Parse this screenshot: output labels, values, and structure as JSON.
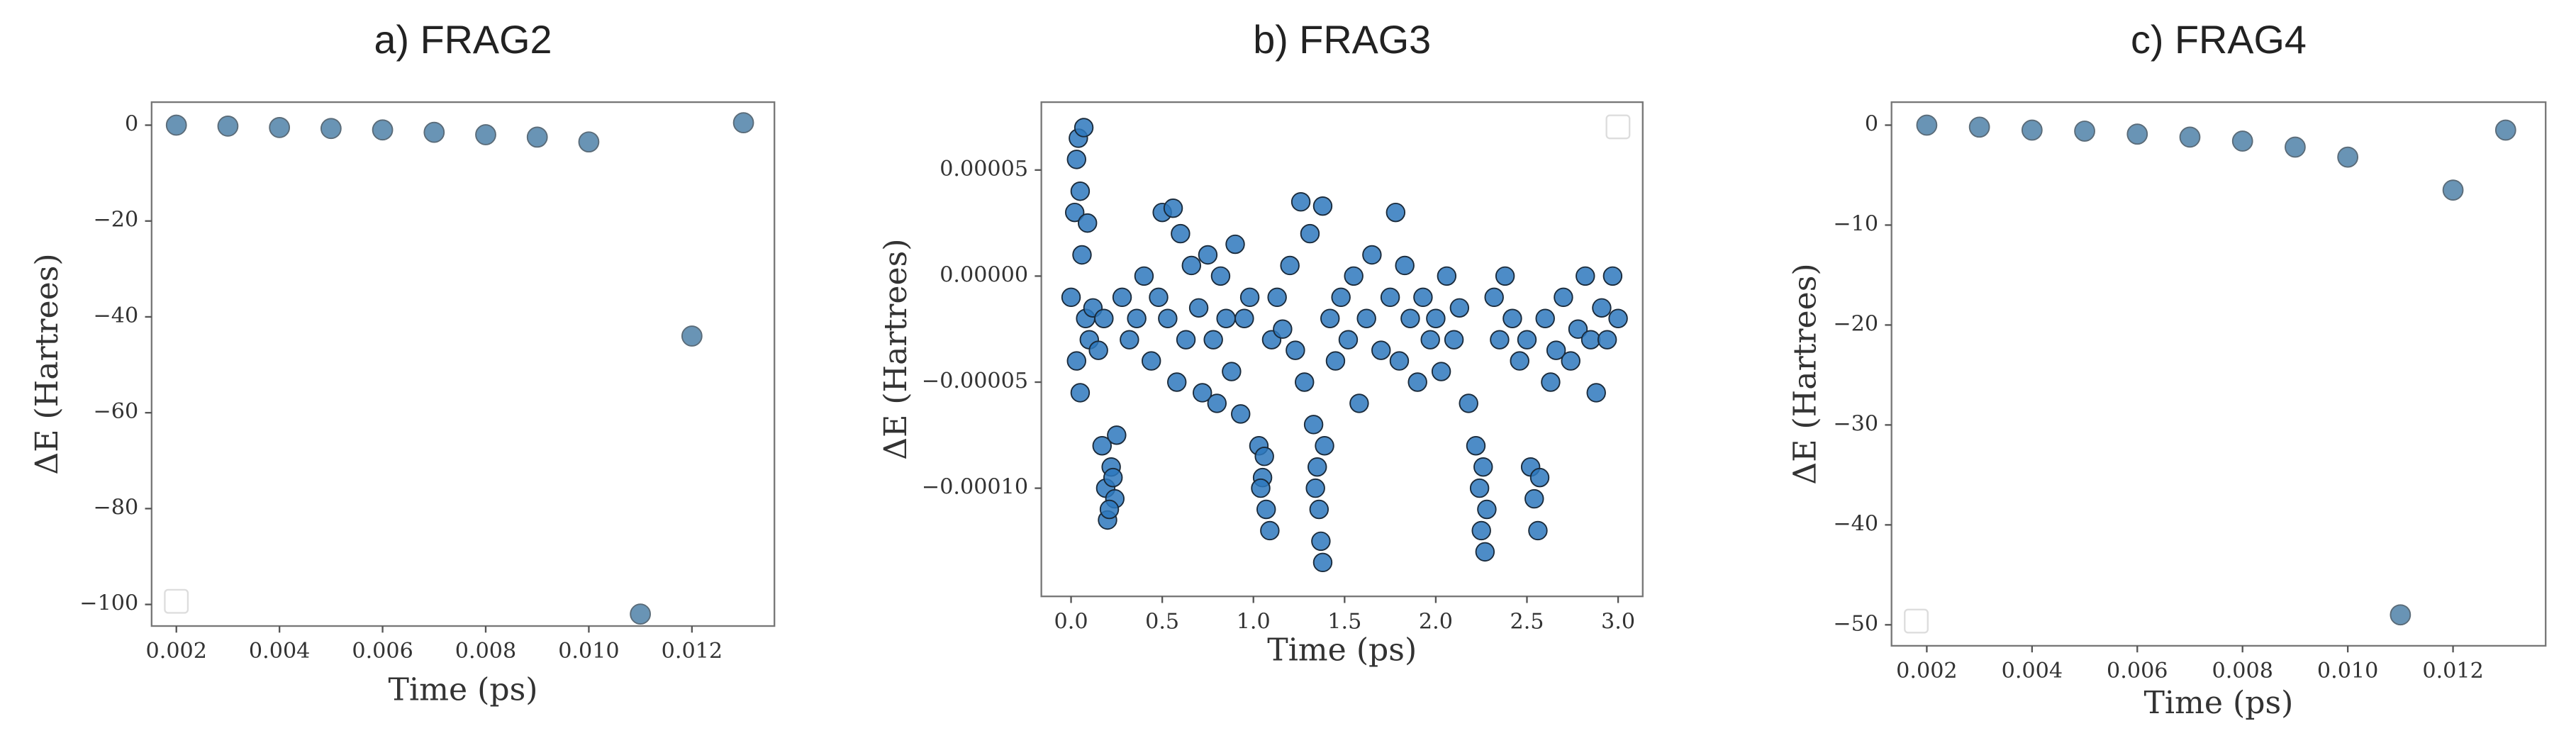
{
  "chart_data": [
    {
      "type": "scatter",
      "title": "a) FRAG2",
      "xlabel": "Time (ps)",
      "ylabel": "ΔE (Hartrees)",
      "x": [
        0.002,
        0.003,
        0.004,
        0.005,
        0.006,
        0.007,
        0.008,
        0.009,
        0.01,
        0.011,
        0.012,
        0.013
      ],
      "values": [
        0,
        -0.2,
        -0.5,
        -0.7,
        -1,
        -1.5,
        -2,
        -2.5,
        -3.5,
        -102,
        -44,
        0.5
      ],
      "color": "#4f81a8",
      "edgecolor": "#5a6b78",
      "xlim": [
        0.00152,
        0.0136
      ],
      "ylim": [
        -104.5,
        4.8
      ],
      "xticks": [
        0.002,
        0.004,
        0.006,
        0.008,
        {
          "value": 0.01,
          "label": "0.010"
        },
        0.012
      ],
      "yticks": [
        0,
        {
          "value": -20,
          "label": "−20"
        },
        {
          "value": -40,
          "label": "−40"
        },
        {
          "value": -60,
          "label": "−60"
        },
        {
          "value": -80,
          "label": "−80"
        },
        {
          "value": -100,
          "label": "−100"
        }
      ],
      "legend": "lower left"
    },
    {
      "type": "scatter",
      "title": "b) FRAG3",
      "xlabel": "Time (ps)",
      "ylabel": "ΔE (Hartrees)",
      "x": [
        0.0,
        0.02,
        0.03,
        0.04,
        0.05,
        0.06,
        0.07,
        0.08,
        0.03,
        0.05,
        0.09,
        0.1,
        0.12,
        0.15,
        0.18,
        0.17,
        0.19,
        0.2,
        0.22,
        0.24,
        0.25,
        0.21,
        0.23,
        0.28,
        0.32,
        0.36,
        0.4,
        0.44,
        0.48,
        0.5,
        0.53,
        0.56,
        0.58,
        0.6,
        0.63,
        0.66,
        0.7,
        0.72,
        0.75,
        0.78,
        0.8,
        0.82,
        0.85,
        0.88,
        0.9,
        0.93,
        0.95,
        0.98,
        1.03,
        1.05,
        1.07,
        1.09,
        1.06,
        1.04,
        1.1,
        1.13,
        1.16,
        1.2,
        1.23,
        1.26,
        1.28,
        1.31,
        1.33,
        1.35,
        1.36,
        1.37,
        1.38,
        1.34,
        1.39,
        1.38,
        1.42,
        1.45,
        1.48,
        1.52,
        1.55,
        1.58,
        1.62,
        1.65,
        1.7,
        1.75,
        1.78,
        1.8,
        1.83,
        1.86,
        1.9,
        1.93,
        1.97,
        2.0,
        2.03,
        2.06,
        2.1,
        2.13,
        2.18,
        2.22,
        2.24,
        2.25,
        2.27,
        2.26,
        2.28,
        2.32,
        2.35,
        2.38,
        2.42,
        2.46,
        2.5,
        2.52,
        2.54,
        2.56,
        2.57,
        2.6,
        2.63,
        2.66,
        2.7,
        2.74,
        2.78,
        2.82,
        2.85,
        2.88,
        2.91,
        2.94,
        2.97,
        3.0
      ],
      "values": [
        -1e-05,
        3e-05,
        5.5e-05,
        6.5e-05,
        4e-05,
        1e-05,
        7e-05,
        -2e-05,
        -4e-05,
        -5.5e-05,
        2.5e-05,
        -3e-05,
        -1.5e-05,
        -3.5e-05,
        -2e-05,
        -8e-05,
        -0.0001,
        -0.000115,
        -9e-05,
        -0.000105,
        -7.5e-05,
        -0.00011,
        -9.5e-05,
        -1e-05,
        -3e-05,
        -2e-05,
        0,
        -4e-05,
        -1e-05,
        3e-05,
        -2e-05,
        3.2e-05,
        -5e-05,
        2e-05,
        -3e-05,
        5e-06,
        -1.5e-05,
        -5.5e-05,
        1e-05,
        -3e-05,
        -6e-05,
        0,
        -2e-05,
        -4.5e-05,
        1.5e-05,
        -6.5e-05,
        -2e-05,
        -1e-05,
        -8e-05,
        -9.5e-05,
        -0.00011,
        -0.00012,
        -8.5e-05,
        -0.0001,
        -3e-05,
        -1e-05,
        -2.5e-05,
        5e-06,
        -3.5e-05,
        3.5e-05,
        -5e-05,
        2e-05,
        -7e-05,
        -9e-05,
        -0.00011,
        -0.000125,
        -0.000135,
        -0.0001,
        -8e-05,
        3.3e-05,
        -2e-05,
        -4e-05,
        -1e-05,
        -3e-05,
        0,
        -6e-05,
        -2e-05,
        1e-05,
        -3.5e-05,
        -1e-05,
        3e-05,
        -4e-05,
        5e-06,
        -2e-05,
        -5e-05,
        -1e-05,
        -3e-05,
        -2e-05,
        -4.5e-05,
        0,
        -3e-05,
        -1.5e-05,
        -6e-05,
        -8e-05,
        -0.0001,
        -0.00012,
        -0.00013,
        -9e-05,
        -0.00011,
        -1e-05,
        -3e-05,
        0,
        -2e-05,
        -4e-05,
        -3e-05,
        -9e-05,
        -0.000105,
        -0.00012,
        -9.5e-05,
        -2e-05,
        -5e-05,
        -3.5e-05,
        -1e-05,
        -4e-05,
        -2.5e-05,
        0,
        -3e-05,
        -5.5e-05,
        -1.5e-05,
        -3e-05,
        0,
        -2e-05
      ],
      "color": "#2e78bd",
      "edgecolor": "#1a2a3a",
      "xlim": [
        -0.163,
        3.135
      ],
      "ylim": [
        -0.000151,
        8.2e-05
      ],
      "xticks": [
        {
          "value": 0,
          "label": "0.0"
        },
        0.5,
        {
          "value": 1,
          "label": "1.0"
        },
        1.5,
        {
          "value": 2,
          "label": "2.0"
        },
        2.5,
        {
          "value": 3,
          "label": "3.0"
        }
      ],
      "yticks": [
        5e-05,
        {
          "value": 0,
          "label": "0.00000"
        },
        {
          "value": -5e-05,
          "label": "−0.00005"
        },
        {
          "value": -0.0001,
          "label": "−0.00010"
        }
      ],
      "legend": "upper right"
    },
    {
      "type": "scatter",
      "title": "c) FRAG4",
      "xlabel": "Time (ps)",
      "ylabel": "ΔE (Hartrees)",
      "x": [
        0.002,
        0.003,
        0.004,
        0.005,
        0.006,
        0.007,
        0.008,
        0.009,
        0.01,
        0.011,
        0.012,
        0.013
      ],
      "values": [
        0,
        -0.2,
        -0.5,
        -0.6,
        -0.9,
        -1.2,
        -1.6,
        -2.2,
        -3.2,
        -49,
        -6.5,
        -0.5
      ],
      "color": "#4f81a8",
      "edgecolor": "#5a6b78",
      "xlim": [
        0.00133,
        0.01376
      ],
      "ylim": [
        -52.1,
        2.3
      ],
      "xticks": [
        0.002,
        0.004,
        0.006,
        0.008,
        {
          "value": 0.01,
          "label": "0.010"
        },
        0.012
      ],
      "yticks": [
        0,
        {
          "value": -10,
          "label": "−10"
        },
        {
          "value": -20,
          "label": "−20"
        },
        {
          "value": -30,
          "label": "−30"
        },
        {
          "value": -40,
          "label": "−40"
        },
        {
          "value": -50,
          "label": "−50"
        }
      ],
      "legend": "lower left"
    }
  ]
}
